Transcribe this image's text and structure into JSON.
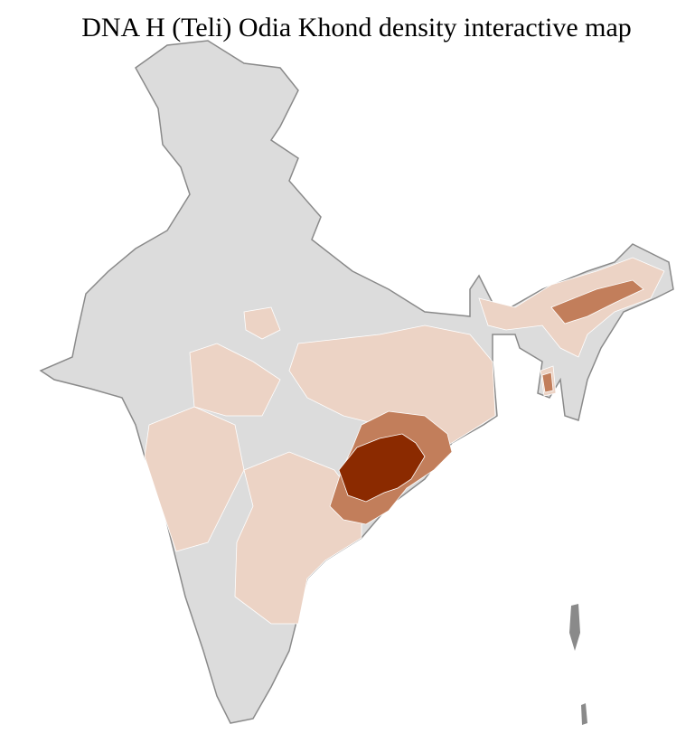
{
  "title": "DNA H (Teli) Odia Khond density interactive map",
  "colors": {
    "no_data": "#dcdcdc",
    "low": "#ecd3c5",
    "medium": "#c27e5b",
    "high": "#8b2a00",
    "border": "#8a8a8a",
    "district_border": "#ffffff"
  }
}
